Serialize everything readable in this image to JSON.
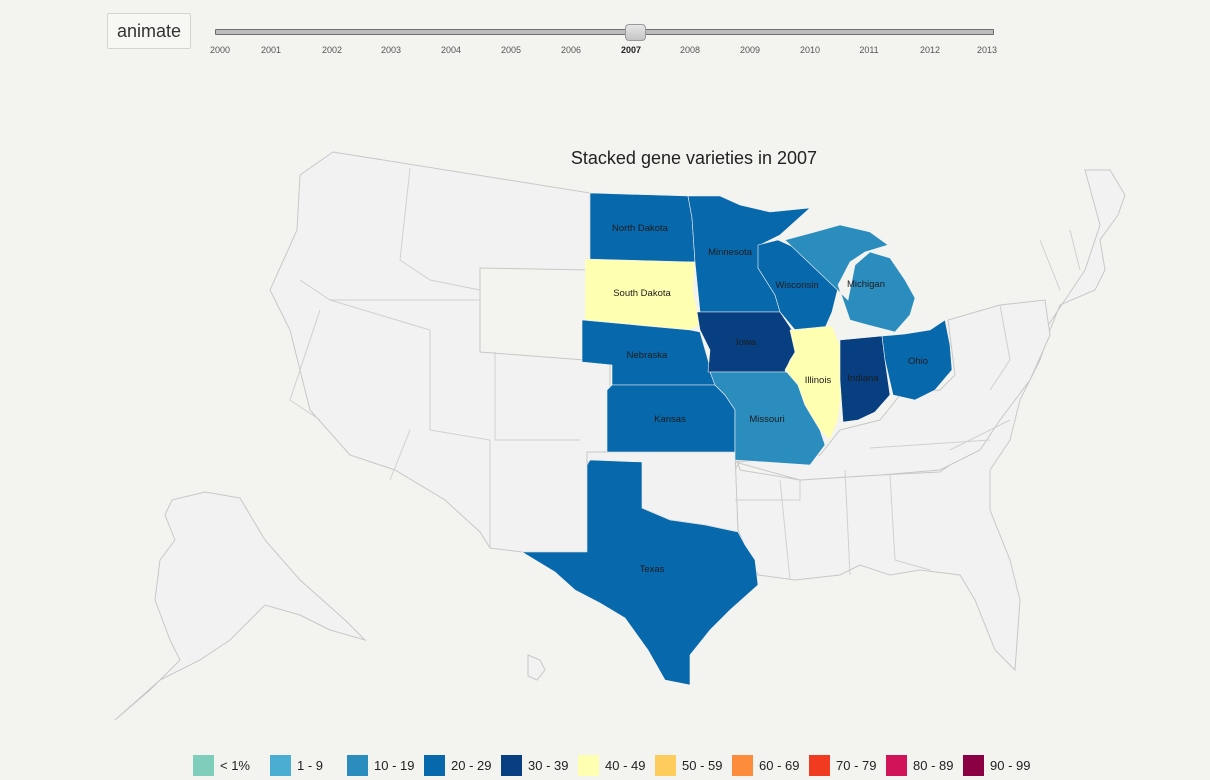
{
  "controls": {
    "animate_label": "animate",
    "years": [
      "2000",
      "2001",
      "2002",
      "2003",
      "2004",
      "2005",
      "2006",
      "2007",
      "2008",
      "2009",
      "2010",
      "2011",
      "2012",
      "2013"
    ],
    "selected_year": "2007"
  },
  "map": {
    "title": "Stacked gene varieties in 2007",
    "states": [
      {
        "name": "North Dakota",
        "bin": "20 - 29"
      },
      {
        "name": "South Dakota",
        "bin": "40 - 49"
      },
      {
        "name": "Minnesota",
        "bin": "20 - 29"
      },
      {
        "name": "Nebraska",
        "bin": "20 - 29"
      },
      {
        "name": "Kansas",
        "bin": "20 - 29"
      },
      {
        "name": "Texas",
        "bin": "20 - 29"
      },
      {
        "name": "Iowa",
        "bin": "30 - 39"
      },
      {
        "name": "Missouri",
        "bin": "10 - 19"
      },
      {
        "name": "Wisconsin",
        "bin": "20 - 29"
      },
      {
        "name": "Illinois",
        "bin": "40 - 49"
      },
      {
        "name": "Michigan",
        "bin": "10 - 19"
      },
      {
        "name": "Indiana",
        "bin": "30 - 39"
      },
      {
        "name": "Ohio",
        "bin": "20 - 29"
      }
    ]
  },
  "legend": [
    {
      "label": "< 1%",
      "color": "#7fcdbb"
    },
    {
      "label": "1 - 9",
      "color": "#4aaed3"
    },
    {
      "label": "10 - 19",
      "color": "#2b8cbe"
    },
    {
      "label": "20 - 29",
      "color": "#0868ac"
    },
    {
      "label": "30 - 39",
      "color": "#073f80"
    },
    {
      "label": "40 - 49",
      "color": "#ffffb2"
    },
    {
      "label": "50 - 59",
      "color": "#fecc5c"
    },
    {
      "label": "60 - 69",
      "color": "#fd8d3c"
    },
    {
      "label": "70 - 79",
      "color": "#f03b20"
    },
    {
      "label": "80 - 89",
      "color": "#d1145a"
    },
    {
      "label": "90 - 99",
      "color": "#8b0045"
    }
  ]
}
